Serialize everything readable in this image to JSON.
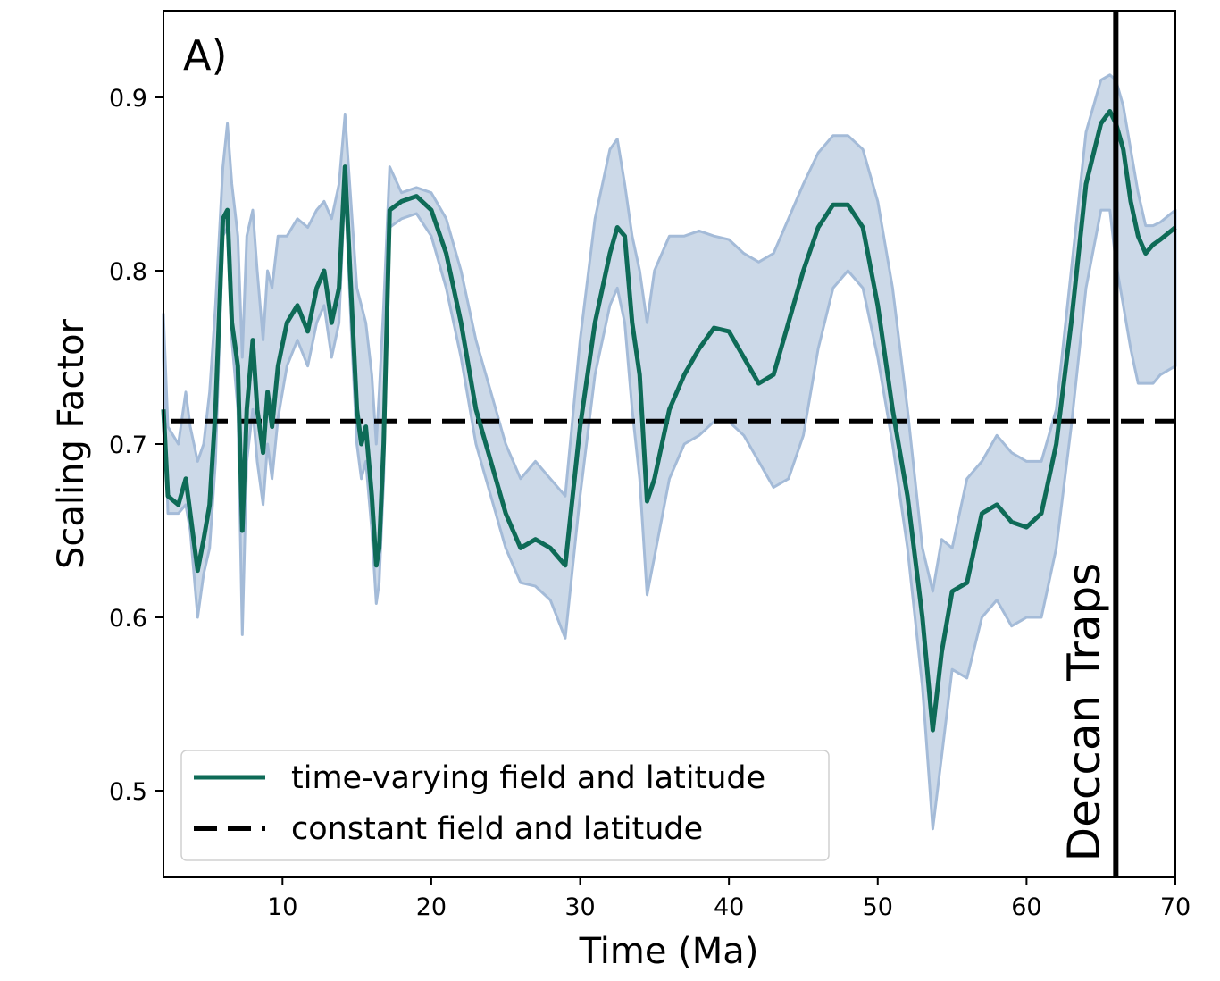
{
  "chart_data": {
    "type": "line",
    "panel_label": "A)",
    "xlabel": "Time (Ma)",
    "ylabel": "Scaling Factor",
    "xlim": [
      2,
      70
    ],
    "ylim": [
      0.45,
      0.95
    ],
    "x_ticks": [
      10,
      20,
      30,
      40,
      50,
      60,
      70
    ],
    "y_ticks": [
      0.5,
      0.6,
      0.7,
      0.8,
      0.9
    ],
    "grid": false,
    "legend_position": "lower-left",
    "colors": {
      "main_line": "#0e6b57",
      "band_fill": "#ccd9e8",
      "band_edge": "#a4bbd8",
      "constant_line": "#000000",
      "event_line": "#000000"
    },
    "series": [
      {
        "name": "time-varying field and latitude",
        "style": "solid",
        "x": [
          2,
          2.3,
          3,
          3.5,
          3.8,
          4.3,
          4.7,
          5.1,
          5.5,
          6.0,
          6.3,
          6.6,
          7.0,
          7.3,
          7.6,
          8.0,
          8.3,
          8.7,
          9.0,
          9.3,
          9.7,
          10.3,
          11.0,
          11.7,
          12.3,
          12.8,
          13.3,
          13.8,
          14.2,
          14.6,
          15.0,
          15.3,
          15.6,
          16.0,
          16.3,
          16.5,
          16.8,
          17.2,
          18.0,
          19.0,
          20.0,
          21.0,
          22.0,
          23.0,
          24.0,
          25.0,
          26.0,
          27.0,
          28.0,
          29.0,
          30.0,
          31.0,
          32.0,
          32.5,
          33.0,
          33.5,
          34.0,
          34.5,
          35.0,
          36.0,
          37.0,
          38.0,
          39.0,
          40.0,
          41.0,
          42.0,
          43.0,
          44.0,
          45.0,
          46.0,
          47.0,
          48.0,
          49.0,
          50.0,
          51.0,
          52.0,
          53.0,
          53.7,
          54.3,
          55.0,
          56.0,
          57.0,
          58.0,
          59.0,
          60.0,
          61.0,
          62.0,
          63.0,
          64.0,
          65.0,
          65.6,
          66.0,
          66.5,
          67.0,
          67.5,
          68.0,
          68.5,
          69.0,
          70.0
        ],
        "values": [
          0.72,
          0.67,
          0.665,
          0.68,
          0.66,
          0.627,
          0.645,
          0.665,
          0.72,
          0.83,
          0.835,
          0.77,
          0.745,
          0.65,
          0.72,
          0.76,
          0.72,
          0.695,
          0.73,
          0.71,
          0.745,
          0.77,
          0.78,
          0.765,
          0.79,
          0.8,
          0.77,
          0.79,
          0.86,
          0.79,
          0.72,
          0.7,
          0.71,
          0.67,
          0.63,
          0.64,
          0.7,
          0.835,
          0.84,
          0.843,
          0.835,
          0.81,
          0.77,
          0.72,
          0.69,
          0.66,
          0.64,
          0.645,
          0.64,
          0.63,
          0.71,
          0.77,
          0.81,
          0.825,
          0.82,
          0.77,
          0.74,
          0.667,
          0.68,
          0.72,
          0.74,
          0.755,
          0.767,
          0.765,
          0.75,
          0.735,
          0.74,
          0.77,
          0.8,
          0.825,
          0.838,
          0.838,
          0.825,
          0.78,
          0.72,
          0.67,
          0.6,
          0.535,
          0.58,
          0.615,
          0.62,
          0.66,
          0.665,
          0.655,
          0.652,
          0.66,
          0.7,
          0.77,
          0.85,
          0.885,
          0.892,
          0.885,
          0.87,
          0.84,
          0.82,
          0.81,
          0.815,
          0.818,
          0.825
        ]
      },
      {
        "name": "constant field and latitude",
        "style": "dashed",
        "x": [
          2,
          70
        ],
        "values": [
          0.713,
          0.713
        ]
      }
    ],
    "uncertainty_band": {
      "x": [
        2,
        2.3,
        3,
        3.5,
        3.8,
        4.3,
        4.7,
        5.1,
        5.5,
        6.0,
        6.3,
        6.6,
        7.0,
        7.3,
        7.6,
        8.0,
        8.3,
        8.7,
        9.0,
        9.3,
        9.7,
        10.3,
        11.0,
        11.7,
        12.3,
        12.8,
        13.3,
        13.8,
        14.2,
        14.6,
        15.0,
        15.3,
        15.6,
        16.0,
        16.3,
        16.5,
        16.8,
        17.2,
        18.0,
        19.0,
        20.0,
        21.0,
        22.0,
        23.0,
        24.0,
        25.0,
        26.0,
        27.0,
        28.0,
        29.0,
        30.0,
        31.0,
        32.0,
        32.5,
        33.0,
        33.5,
        34.0,
        34.5,
        35.0,
        36.0,
        37.0,
        38.0,
        39.0,
        40.0,
        41.0,
        42.0,
        43.0,
        44.0,
        45.0,
        46.0,
        47.0,
        48.0,
        49.0,
        50.0,
        51.0,
        52.0,
        53.0,
        53.7,
        54.3,
        55.0,
        56.0,
        57.0,
        58.0,
        59.0,
        60.0,
        61.0,
        62.0,
        63.0,
        64.0,
        65.0,
        65.6,
        66.0,
        66.5,
        67.0,
        67.5,
        68.0,
        68.5,
        69.0,
        70.0
      ],
      "lower": [
        0.75,
        0.66,
        0.66,
        0.665,
        0.65,
        0.6,
        0.625,
        0.64,
        0.69,
        0.82,
        0.825,
        0.76,
        0.72,
        0.59,
        0.69,
        0.72,
        0.69,
        0.665,
        0.7,
        0.68,
        0.715,
        0.745,
        0.76,
        0.745,
        0.77,
        0.78,
        0.75,
        0.77,
        0.85,
        0.77,
        0.7,
        0.68,
        0.69,
        0.65,
        0.608,
        0.62,
        0.68,
        0.825,
        0.83,
        0.833,
        0.82,
        0.79,
        0.75,
        0.7,
        0.67,
        0.64,
        0.62,
        0.618,
        0.61,
        0.588,
        0.67,
        0.74,
        0.78,
        0.79,
        0.77,
        0.72,
        0.68,
        0.613,
        0.635,
        0.68,
        0.7,
        0.705,
        0.713,
        0.713,
        0.705,
        0.69,
        0.675,
        0.68,
        0.705,
        0.755,
        0.79,
        0.8,
        0.79,
        0.75,
        0.7,
        0.64,
        0.56,
        0.478,
        0.52,
        0.57,
        0.565,
        0.6,
        0.61,
        0.595,
        0.6,
        0.6,
        0.64,
        0.71,
        0.79,
        0.835,
        0.835,
        0.805,
        0.78,
        0.755,
        0.735,
        0.735,
        0.735,
        0.74,
        0.745
      ],
      "upper": [
        0.775,
        0.71,
        0.7,
        0.73,
        0.71,
        0.69,
        0.7,
        0.73,
        0.78,
        0.86,
        0.885,
        0.85,
        0.82,
        0.75,
        0.82,
        0.835,
        0.8,
        0.76,
        0.8,
        0.79,
        0.82,
        0.82,
        0.83,
        0.825,
        0.835,
        0.84,
        0.83,
        0.85,
        0.89,
        0.84,
        0.79,
        0.78,
        0.77,
        0.74,
        0.7,
        0.73,
        0.78,
        0.86,
        0.845,
        0.848,
        0.845,
        0.83,
        0.8,
        0.76,
        0.73,
        0.7,
        0.68,
        0.69,
        0.68,
        0.67,
        0.76,
        0.83,
        0.87,
        0.876,
        0.85,
        0.82,
        0.8,
        0.77,
        0.8,
        0.82,
        0.82,
        0.823,
        0.82,
        0.818,
        0.81,
        0.805,
        0.81,
        0.83,
        0.85,
        0.868,
        0.878,
        0.878,
        0.87,
        0.84,
        0.79,
        0.72,
        0.64,
        0.615,
        0.645,
        0.64,
        0.68,
        0.69,
        0.705,
        0.695,
        0.69,
        0.69,
        0.72,
        0.8,
        0.88,
        0.91,
        0.913,
        0.91,
        0.895,
        0.87,
        0.845,
        0.826,
        0.826,
        0.828,
        0.835
      ]
    },
    "annotations": [
      {
        "type": "vertical_line",
        "x": 66,
        "label": "Deccan Traps"
      }
    ]
  }
}
